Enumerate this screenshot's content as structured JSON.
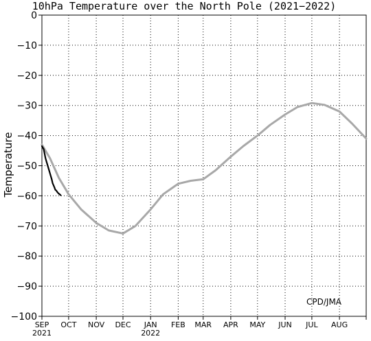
{
  "chart_data": {
    "type": "line",
    "title": "10hPa Temperature over the North Pole (2021−2022)",
    "ylabel": "Temperature",
    "xlabel": "",
    "credit": "CPD/JMA",
    "ylim": [
      -100,
      0
    ],
    "yticks": [
      0,
      -10,
      -20,
      -30,
      -40,
      -50,
      -60,
      -70,
      -80,
      -90,
      -100
    ],
    "grid": true,
    "x_axis": {
      "start": "2021-09-01",
      "end": "2022-08-31",
      "month_labels": [
        "SEP",
        "OCT",
        "NOV",
        "DEC",
        "JAN",
        "FEB",
        "MAR",
        "APR",
        "MAY",
        "JUN",
        "JUL",
        "AUG"
      ],
      "year_labels": [
        {
          "month": "SEP",
          "year": "2021"
        },
        {
          "month": "JAN",
          "year": "2022"
        }
      ]
    },
    "series": [
      {
        "color": "#a8a8a8",
        "points": [
          [
            "2021-09-01",
            -43
          ],
          [
            "2021-09-10",
            -47.5
          ],
          [
            "2021-09-20",
            -54
          ],
          [
            "2021-10-01",
            -59.5
          ],
          [
            "2021-10-15",
            -64.5
          ],
          [
            "2021-11-01",
            -69
          ],
          [
            "2021-11-15",
            -71.5
          ],
          [
            "2021-12-01",
            -72.5
          ],
          [
            "2021-12-15",
            -70
          ],
          [
            "2022-01-01",
            -64.5
          ],
          [
            "2022-01-15",
            -59.5
          ],
          [
            "2022-02-01",
            -56
          ],
          [
            "2022-02-15",
            -55
          ],
          [
            "2022-03-01",
            -54.5
          ],
          [
            "2022-03-15",
            -51.5
          ],
          [
            "2022-04-01",
            -47
          ],
          [
            "2022-04-15",
            -43.5
          ],
          [
            "2022-05-01",
            -40
          ],
          [
            "2022-05-15",
            -36.5
          ],
          [
            "2022-06-01",
            -33
          ],
          [
            "2022-06-15",
            -30.5
          ],
          [
            "2022-07-01",
            -29.2
          ],
          [
            "2022-07-15",
            -29.8
          ],
          [
            "2022-08-01",
            -32
          ],
          [
            "2022-08-15",
            -36
          ],
          [
            "2022-08-31",
            -41
          ]
        ]
      },
      {
        "color": "#000000",
        "points": [
          [
            "2021-09-01",
            -43.5
          ],
          [
            "2021-09-02",
            -44
          ],
          [
            "2021-09-03",
            -44.5
          ],
          [
            "2021-09-04",
            -46
          ],
          [
            "2021-09-05",
            -47.5
          ],
          [
            "2021-09-06",
            -48.5
          ],
          [
            "2021-09-07",
            -49.5
          ],
          [
            "2021-09-08",
            -50.5
          ],
          [
            "2021-09-09",
            -51.5
          ],
          [
            "2021-09-10",
            -52.5
          ],
          [
            "2021-09-11",
            -53.5
          ],
          [
            "2021-09-12",
            -54.5
          ],
          [
            "2021-09-13",
            -55.8
          ],
          [
            "2021-09-14",
            -56.5
          ],
          [
            "2021-09-15",
            -57.2
          ],
          [
            "2021-09-16",
            -58
          ],
          [
            "2021-09-17",
            -58.2
          ],
          [
            "2021-09-18",
            -58.6
          ],
          [
            "2021-09-19",
            -59
          ],
          [
            "2021-09-20",
            -59.3
          ],
          [
            "2021-09-21",
            -59.5
          ],
          [
            "2021-09-22",
            -59.8
          ]
        ]
      }
    ]
  }
}
